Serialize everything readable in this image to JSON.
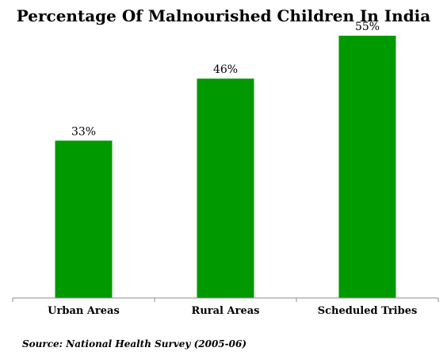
{
  "chart_data": {
    "type": "bar",
    "title": "Percentage Of Malnourished Children In India",
    "categories": [
      "Urban Areas",
      "Rural Areas",
      "Scheduled Tribes"
    ],
    "values": [
      33,
      46,
      55
    ],
    "data_labels": [
      "33%",
      "46%",
      "55%"
    ],
    "unit": "%",
    "ylim": [
      0,
      60
    ],
    "bar_color": "#009900",
    "grid": false,
    "legend": "none",
    "source": "Source: National Health Survey (2005-06)"
  }
}
